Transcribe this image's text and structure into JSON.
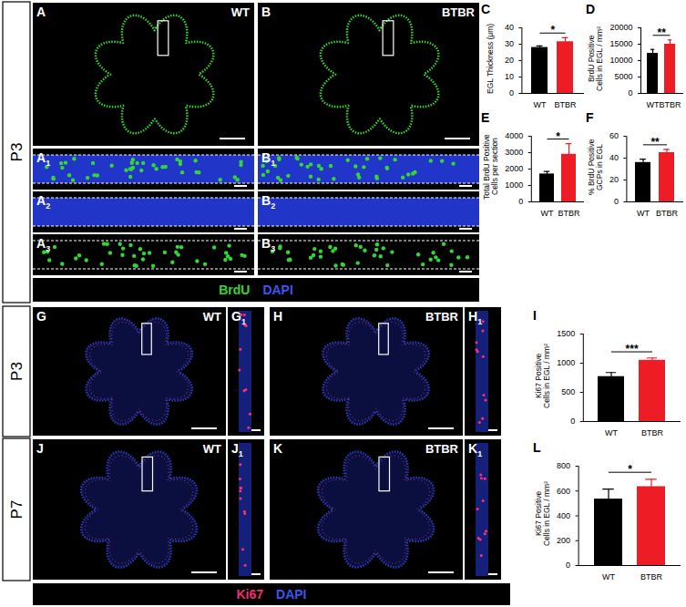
{
  "chart_data": [
    {
      "type": "bar",
      "panel": "C",
      "ylabel": "EGL Thickness (μm)",
      "categories": [
        "WT",
        "BTBR"
      ],
      "values": [
        28,
        31.5
      ],
      "errors": [
        1,
        2.5
      ],
      "colors": [
        "#000000",
        "#ee1c25"
      ],
      "ylim": [
        0,
        40
      ],
      "yticks": [
        0,
        10,
        20,
        30,
        40
      ],
      "significance": "*"
    },
    {
      "type": "bar",
      "panel": "D",
      "ylabel": "BrdU Positive\nCells in EGL / mm²",
      "categories": [
        "WT",
        "BTBR"
      ],
      "values": [
        12200,
        15000
      ],
      "errors": [
        1200,
        1300
      ],
      "colors": [
        "#000000",
        "#ee1c25"
      ],
      "ylim": [
        0,
        20000
      ],
      "yticks": [
        0,
        5000,
        10000,
        15000,
        20000
      ],
      "significance": "**"
    },
    {
      "type": "bar",
      "panel": "E",
      "ylabel": "Total BrdU Positive\nCells per section",
      "categories": [
        "WT",
        "BTBR"
      ],
      "values": [
        1700,
        2900
      ],
      "errors": [
        150,
        650
      ],
      "colors": [
        "#000000",
        "#ee1c25"
      ],
      "ylim": [
        0,
        4000
      ],
      "yticks": [
        0,
        1000,
        2000,
        3000,
        4000
      ],
      "significance": "*"
    },
    {
      "type": "bar",
      "panel": "F",
      "ylabel": "% BrdU Positive\nGCPs in EGL",
      "categories": [
        "WT",
        "BTBR"
      ],
      "values": [
        36,
        45
      ],
      "errors": [
        3,
        3
      ],
      "colors": [
        "#000000",
        "#ee1c25"
      ],
      "ylim": [
        0,
        60
      ],
      "yticks": [
        0,
        20,
        40,
        60
      ],
      "significance": "**"
    },
    {
      "type": "bar",
      "panel": "I",
      "ylabel": "Ki67 Positive\nCells in EGL / mm²",
      "categories": [
        "WT",
        "BTBR"
      ],
      "values": [
        770,
        1050
      ],
      "errors": [
        70,
        40
      ],
      "colors": [
        "#000000",
        "#ee1c25"
      ],
      "ylim": [
        0,
        1500
      ],
      "yticks": [
        0,
        500,
        1000,
        1500
      ],
      "significance": "***"
    },
    {
      "type": "bar",
      "panel": "L",
      "ylabel": "Ki67 Positive\nCells in EGL / mm²",
      "categories": [
        "WT",
        "BTBR"
      ],
      "values": [
        535,
        635
      ],
      "errors": [
        80,
        60
      ],
      "colors": [
        "#000000",
        "#ee1c25"
      ],
      "ylim": [
        0,
        800
      ],
      "yticks": [
        0,
        200,
        400,
        600,
        800
      ],
      "significance": "*"
    }
  ],
  "image_panels": [
    {
      "label": "A",
      "sub": null,
      "condition": "WT"
    },
    {
      "label": "B",
      "sub": null,
      "condition": "BTBR"
    },
    {
      "label": "A",
      "sub": "1",
      "condition": null
    },
    {
      "label": "B",
      "sub": "1",
      "condition": null
    },
    {
      "label": "A",
      "sub": "2",
      "condition": null
    },
    {
      "label": "B",
      "sub": "2",
      "condition": null
    },
    {
      "label": "A",
      "sub": "3",
      "condition": null
    },
    {
      "label": "B",
      "sub": "3",
      "condition": null
    },
    {
      "label": "G",
      "sub": null,
      "condition": "WT"
    },
    {
      "label": "G",
      "sub": "1",
      "condition": null
    },
    {
      "label": "H",
      "sub": null,
      "condition": "BTBR"
    },
    {
      "label": "H",
      "sub": "1",
      "condition": null
    },
    {
      "label": "J",
      "sub": null,
      "condition": "WT"
    },
    {
      "label": "J",
      "sub": "1",
      "condition": null
    },
    {
      "label": "K",
      "sub": null,
      "condition": "BTBR"
    },
    {
      "label": "K",
      "sub": "1",
      "condition": null
    }
  ],
  "stain_legends": [
    [
      {
        "text": "BrdU",
        "color": "#33d633"
      },
      {
        "text": "DAPI",
        "color": "#3b55f0"
      }
    ],
    [
      {
        "text": "Ki67",
        "color": "#f0306a"
      },
      {
        "text": "DAPI",
        "color": "#3b55f0"
      }
    ]
  ],
  "ages": [
    "P3",
    "P3",
    "P7"
  ]
}
